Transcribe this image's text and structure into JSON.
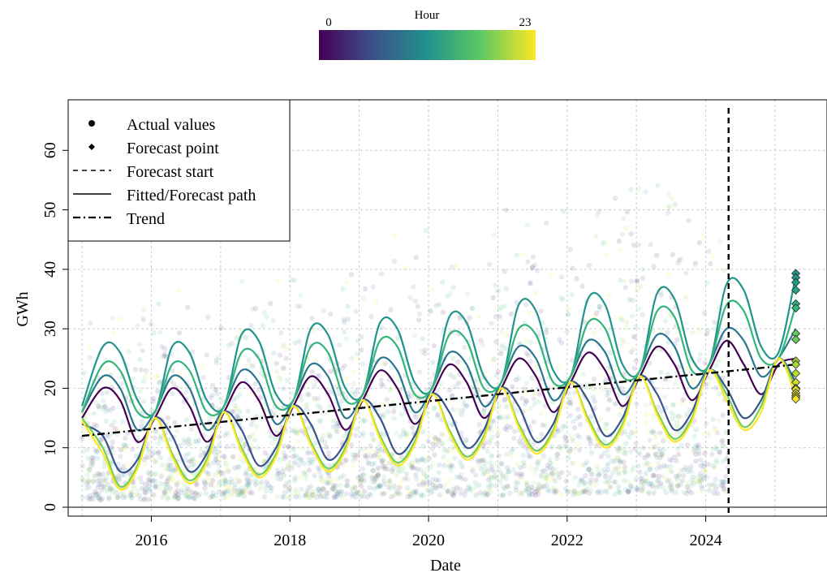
{
  "chart_data": {
    "type": "line",
    "xlabel": "Date",
    "ylabel": "GWh",
    "xlim": [
      2014.8,
      2025.75
    ],
    "ylim": [
      -1.5,
      68.5
    ],
    "x_ticks": [
      2016,
      2018,
      2020,
      2022,
      2024
    ],
    "y_ticks": [
      0,
      10,
      20,
      30,
      40,
      50,
      60
    ],
    "grid": true,
    "legend": {
      "position": "top-left",
      "entries": [
        "Actual values",
        "Forecast point",
        "Forecast start",
        "Fitted/Forecast path",
        "Trend"
      ]
    },
    "colorbar": {
      "title": "Hour",
      "min_label": "0",
      "max_label": "23",
      "colormap": "viridis",
      "position": "top-center"
    },
    "forecast_start": 2024.33,
    "trend": {
      "x": [
        2015.0,
        2025.3
      ],
      "y": [
        12.0,
        24.0
      ]
    },
    "series": [
      {
        "hour": 0,
        "x": [
          2015.0,
          2015.3,
          2015.55,
          2015.8,
          2016.05,
          2016.3,
          2016.55,
          2016.8,
          2017.05,
          2017.3,
          2017.55,
          2017.8,
          2018.05,
          2018.3,
          2018.55,
          2018.8,
          2019.05,
          2019.3,
          2019.55,
          2019.8,
          2020.05,
          2020.3,
          2020.55,
          2020.8,
          2021.05,
          2021.3,
          2021.55,
          2021.8,
          2022.05,
          2022.3,
          2022.55,
          2022.8,
          2023.05,
          2023.3,
          2023.55,
          2023.8,
          2024.05,
          2024.3,
          2024.55,
          2024.8,
          2025.05,
          2025.3
        ],
        "y": [
          15,
          20,
          18,
          11,
          15,
          20,
          17,
          11,
          16,
          21,
          18,
          12,
          17,
          22,
          19,
          13,
          18,
          23,
          20,
          14,
          19,
          24,
          21,
          15,
          20,
          25,
          22,
          16,
          21,
          26,
          23,
          17,
          22,
          27,
          24,
          18,
          23,
          28,
          24,
          19,
          24,
          25
        ]
      },
      {
        "hour": 6,
        "x": [
          2015.0,
          2015.3,
          2015.55,
          2015.8,
          2016.05,
          2016.3,
          2016.55,
          2016.8,
          2017.05,
          2017.3,
          2017.55,
          2017.8,
          2018.05,
          2018.3,
          2018.55,
          2018.8,
          2019.05,
          2019.3,
          2019.55,
          2019.8,
          2020.05,
          2020.3,
          2020.55,
          2020.8,
          2021.05,
          2021.3,
          2021.55,
          2021.8,
          2022.05,
          2022.3,
          2022.55,
          2022.8,
          2023.05,
          2023.3,
          2023.55,
          2023.8,
          2024.05,
          2024.3,
          2024.55,
          2024.8,
          2025.05,
          2025.3
        ],
        "y": [
          14,
          12,
          6,
          8,
          15,
          12,
          6,
          9,
          16,
          13,
          7,
          10,
          17,
          14,
          8,
          11,
          18,
          15,
          9,
          12,
          19,
          16,
          10,
          13,
          20,
          17,
          11,
          14,
          21,
          18,
          12,
          15,
          22,
          19,
          13,
          16,
          23,
          20,
          15,
          18,
          25,
          21
        ]
      },
      {
        "hour": 9,
        "x": [
          2015.0,
          2015.3,
          2015.55,
          2015.8,
          2016.05,
          2016.3,
          2016.55,
          2016.8,
          2017.05,
          2017.3,
          2017.55,
          2017.8,
          2018.05,
          2018.3,
          2018.55,
          2018.8,
          2019.05,
          2019.3,
          2019.55,
          2019.8,
          2020.05,
          2020.3,
          2020.55,
          2020.8,
          2021.05,
          2021.3,
          2021.55,
          2021.8,
          2022.05,
          2022.3,
          2022.55,
          2022.8,
          2023.05,
          2023.3,
          2023.55,
          2023.8,
          2024.05,
          2024.3,
          2024.55,
          2024.8,
          2025.05,
          2025.3
        ],
        "y": [
          16,
          22,
          20,
          13,
          16,
          22,
          20,
          13,
          17,
          23,
          21,
          14,
          18,
          24,
          22,
          15,
          19,
          25,
          23,
          16,
          20,
          26,
          24,
          17,
          21,
          27,
          25,
          18,
          22,
          28,
          26,
          19,
          23,
          29,
          27,
          20,
          24,
          30,
          28,
          22,
          25,
          30
        ]
      },
      {
        "hour": 12,
        "x": [
          2015.0,
          2015.3,
          2015.55,
          2015.8,
          2016.05,
          2016.3,
          2016.55,
          2016.8,
          2017.05,
          2017.3,
          2017.55,
          2017.8,
          2018.05,
          2018.3,
          2018.55,
          2018.8,
          2019.05,
          2019.3,
          2019.55,
          2019.8,
          2020.05,
          2020.3,
          2020.55,
          2020.8,
          2021.05,
          2021.3,
          2021.55,
          2021.8,
          2022.05,
          2022.3,
          2022.55,
          2022.8,
          2023.05,
          2023.3,
          2023.55,
          2023.8,
          2024.05,
          2024.3,
          2024.55,
          2024.8,
          2025.05,
          2025.3
        ],
        "y": [
          17,
          27,
          26,
          18,
          16,
          27,
          26,
          18,
          17,
          29,
          28,
          19,
          18,
          30,
          29,
          20,
          19,
          31,
          30,
          21,
          20,
          32,
          31,
          22,
          21,
          34,
          33,
          23,
          22,
          35,
          34,
          24,
          23,
          36,
          35,
          25,
          24,
          37.5,
          36.5,
          27,
          26,
          39
        ]
      },
      {
        "hour": 15,
        "x": [
          2015.0,
          2015.3,
          2015.55,
          2015.8,
          2016.05,
          2016.3,
          2016.55,
          2016.8,
          2017.05,
          2017.3,
          2017.55,
          2017.8,
          2018.05,
          2018.3,
          2018.55,
          2018.8,
          2019.05,
          2019.3,
          2019.55,
          2019.8,
          2020.05,
          2020.3,
          2020.55,
          2020.8,
          2021.05,
          2021.3,
          2021.55,
          2021.8,
          2022.05,
          2022.3,
          2022.55,
          2022.8,
          2023.05,
          2023.3,
          2023.55,
          2023.8,
          2024.05,
          2024.3,
          2024.55,
          2024.8,
          2025.05,
          2025.3
        ],
        "y": [
          16,
          24,
          23,
          16,
          16,
          24,
          23,
          16,
          17,
          26,
          25,
          17,
          18,
          27,
          26,
          18,
          19,
          28,
          27,
          19,
          20,
          29,
          28,
          20,
          21,
          30,
          29,
          21,
          22,
          31,
          30,
          22,
          23,
          33,
          32,
          23,
          24,
          34,
          33,
          25,
          25,
          34
        ]
      },
      {
        "hour": 18,
        "x": [
          2015.0,
          2015.3,
          2015.55,
          2015.8,
          2016.05,
          2016.3,
          2016.55,
          2016.8,
          2017.05,
          2017.3,
          2017.55,
          2017.8,
          2018.05,
          2018.3,
          2018.55,
          2018.8,
          2019.05,
          2019.3,
          2019.55,
          2019.8,
          2020.05,
          2020.3,
          2020.55,
          2020.8,
          2021.05,
          2021.3,
          2021.55,
          2021.8,
          2022.05,
          2022.3,
          2022.55,
          2022.8,
          2023.05,
          2023.3,
          2023.55,
          2023.8,
          2024.05,
          2024.3,
          2024.55,
          2024.8,
          2025.05,
          2025.3
        ],
        "y": [
          15,
          10,
          3.5,
          7,
          15,
          9,
          4.5,
          8,
          16,
          10,
          5.5,
          9,
          17,
          11,
          6.5,
          10,
          18,
          12,
          7.5,
          11,
          19,
          13,
          8.5,
          12,
          20,
          14,
          9.5,
          13,
          21,
          15,
          10.5,
          14,
          22,
          16,
          11.5,
          15,
          23,
          19,
          13.5,
          17,
          25,
          20
        ]
      },
      {
        "hour": 23,
        "x": [
          2015.0,
          2015.3,
          2015.55,
          2015.8,
          2016.05,
          2016.3,
          2016.55,
          2016.8,
          2017.05,
          2017.3,
          2017.55,
          2017.8,
          2018.05,
          2018.3,
          2018.55,
          2018.8,
          2019.05,
          2019.3,
          2019.55,
          2019.8,
          2020.05,
          2020.3,
          2020.55,
          2020.8,
          2021.05,
          2021.3,
          2021.55,
          2021.8,
          2022.05,
          2022.3,
          2022.55,
          2022.8,
          2023.05,
          2023.3,
          2023.55,
          2023.8,
          2024.05,
          2024.3,
          2024.55,
          2024.8,
          2025.05,
          2025.3
        ],
        "y": [
          14.5,
          9,
          3,
          6.5,
          15,
          8.5,
          4,
          7.5,
          16,
          9.5,
          5,
          8.5,
          17,
          10.5,
          6,
          9.5,
          18,
          11.5,
          7,
          10.5,
          19,
          12.5,
          8,
          11.5,
          20,
          13.5,
          9,
          12.5,
          21,
          14.5,
          10,
          13.5,
          22,
          15.5,
          11,
          14.5,
          23,
          18,
          13,
          16,
          25,
          18.5
        ]
      }
    ],
    "forecast_points": {
      "x": 2025.3,
      "y": [
        39.3,
        38.6,
        37.8,
        36.5,
        34.2,
        33.5,
        29.2,
        28.2,
        24.6,
        24.0,
        21.0,
        20.0,
        19.8,
        19.2,
        18.8,
        18.5,
        18.2,
        22.5
      ]
    }
  }
}
